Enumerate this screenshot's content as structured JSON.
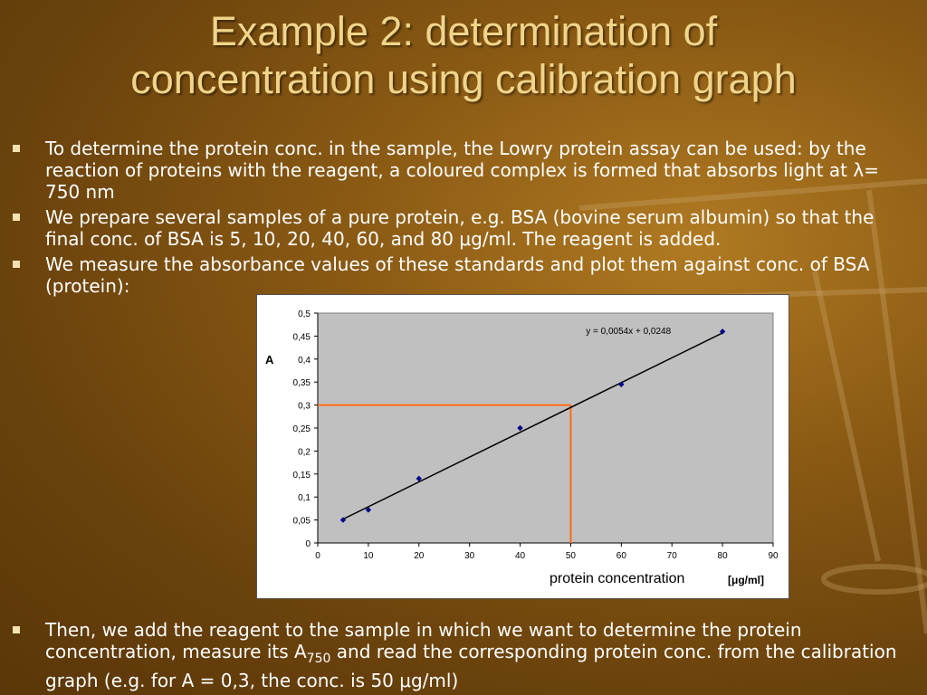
{
  "slide": {
    "title_line1": "Example 2: determination of",
    "title_line2": "concentration using calibration graph",
    "bullets": [
      "To determine the protein conc. in the sample, the Lowry protein assay can be used: by the reaction of proteins with the reagent, a coloured complex is formed that absorbs light at λ= 750 nm",
      "We prepare several samples of a pure protein, e.g. BSA (bovine serum albumin) so that the final conc. of BSA is 5, 10, 20, 40, 60, and 80 μg/ml. The reagent is added.",
      "We measure the absorbance values of these standards and plot them against conc. of BSA (protein):"
    ],
    "last_bullet_pre": "Then, we add the reagent to the sample in which we want to determine the protein concentration, measure its A",
    "last_bullet_sub": "750",
    "last_bullet_post": " and read the corresponding protein conc. from the calibration graph (e.g. for A = 0,3, the conc. is 50 μg/ml)"
  },
  "colors": {
    "title": "#f0d48a",
    "plot_bg": "#c0c0c0",
    "marker": "#00008b",
    "fit_line": "#000000",
    "guide_line": "#ff6a13"
  },
  "chart_data": {
    "type": "scatter",
    "xlabel": "protein concentration",
    "xunit": "[μg/ml]",
    "ylabel": "A",
    "xlim": [
      0,
      90
    ],
    "ylim": [
      0,
      0.5
    ],
    "x_ticks": [
      "0",
      "10",
      "20",
      "30",
      "40",
      "50",
      "60",
      "70",
      "80",
      "90"
    ],
    "y_ticks": [
      "0",
      "0,05",
      "0,1",
      "0,15",
      "0,2",
      "0,25",
      "0,3",
      "0,35",
      "0,4",
      "0,45",
      "0,5"
    ],
    "points": [
      {
        "x": 5,
        "y": 0.05
      },
      {
        "x": 10,
        "y": 0.072
      },
      {
        "x": 20,
        "y": 0.14
      },
      {
        "x": 40,
        "y": 0.25
      },
      {
        "x": 60,
        "y": 0.345
      },
      {
        "x": 80,
        "y": 0.46
      }
    ],
    "trendline": {
      "slope": 0.0054,
      "intercept": 0.0248,
      "x_start": 5,
      "x_end": 80,
      "label": "y = 0,0054x + 0,0248"
    },
    "guide": {
      "x": 50,
      "y": 0.3
    },
    "grid": false,
    "legend": "none"
  }
}
